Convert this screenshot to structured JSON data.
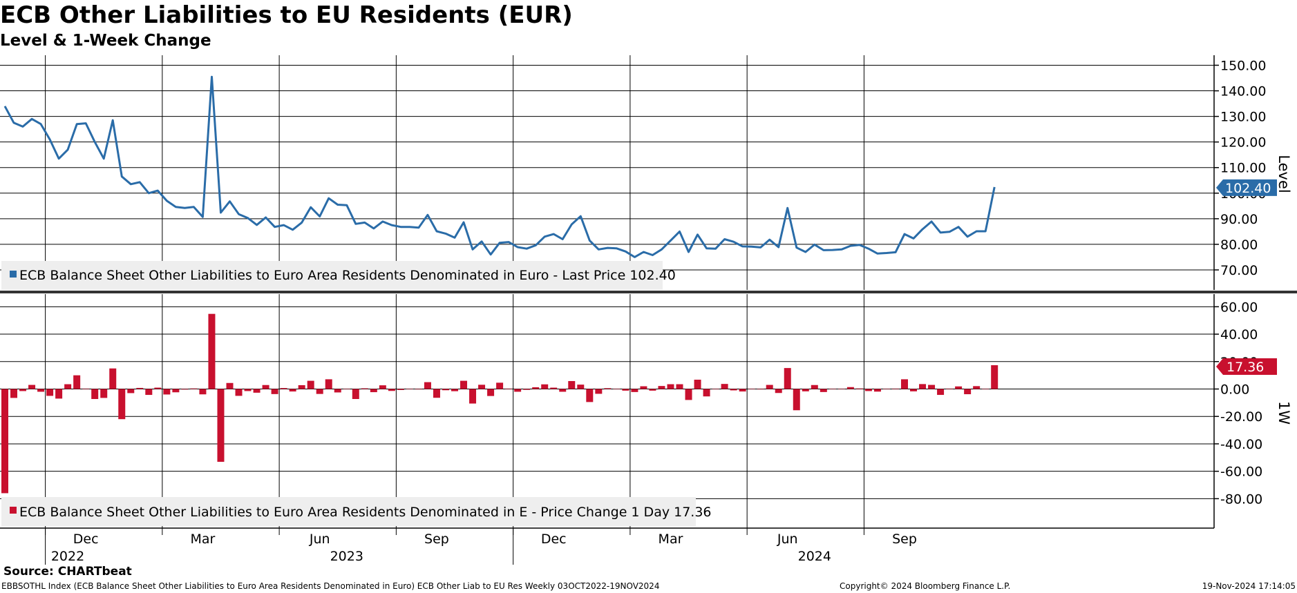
{
  "header": {
    "title": "ECB Other Liabilities to EU Residents (EUR)",
    "subtitle": "Level & 1-Week Change"
  },
  "footer": {
    "source": "Source: CHARTbeat",
    "left": "EBBSOTHL Index (ECB Balance Sheet Other Liabilities to Euro Area Residents Denominated in Euro) ECB Other Liab to EU Res  Weekly 03OCT2022-19NOV2024",
    "middle": "Copyright© 2024 Bloomberg Finance L.P.",
    "right": "19-Nov-2024 17:14:05"
  },
  "colors": {
    "level_line": "#2a6ca8",
    "change_bar": "#c8102e",
    "grid": "#000000",
    "legend_bg": "#eeeeee"
  },
  "chart_data": [
    {
      "type": "line",
      "ylabel": "Level",
      "ylim": [
        63,
        153
      ],
      "yticks": [
        "150.00",
        "140.00",
        "130.00",
        "120.00",
        "110.00",
        "100.00",
        "90.00",
        "80.00",
        "70.00"
      ],
      "ytick_values": [
        150,
        140,
        130,
        120,
        110,
        100,
        90,
        80,
        70
      ],
      "last_value_label": "102.40",
      "legend": "ECB Balance Sheet Other Liabilities to Euro Area Residents Denominated in Euro - Last Price 102.40",
      "series": [
        {
          "name": "ECB Balance Sheet Other Liabilities to Euro Area Residents Denominated in Euro",
          "values": [
            134,
            127.5,
            126,
            129,
            127,
            121,
            113.5,
            117,
            127,
            127.3,
            120,
            113.5,
            128.5,
            106.5,
            103.5,
            104.3,
            100,
            101,
            97,
            94.6,
            94.2,
            94.6,
            90.7,
            145.5,
            92.4,
            96.8,
            91.8,
            90.3,
            87.6,
            90.5,
            86.8,
            87.5,
            85.7,
            88.5,
            94.5,
            90.9,
            98,
            95.5,
            95.3,
            88,
            88.5,
            86.2,
            88.9,
            87.5,
            86.8,
            86.8,
            86.5,
            91.5,
            85.1,
            84.2,
            82.6,
            88.6,
            78,
            81.1,
            76,
            80.6,
            80.9,
            78.9,
            78.3,
            79.6,
            83,
            84,
            82,
            87.8,
            91,
            81.5,
            78,
            78.6,
            78.4,
            77.2,
            75,
            77,
            75.8,
            78,
            81.5,
            85,
            77,
            83.8,
            78.4,
            78.3,
            82,
            81,
            79.2,
            79.1,
            78.8,
            81.8,
            78.9,
            94.2,
            78.7,
            77,
            79.9,
            77.7,
            77.8,
            78,
            79.4,
            79.8,
            78.3,
            76.4,
            76.6,
            76.9,
            84,
            82.3,
            85.9,
            88.9,
            84.6,
            84.9,
            86.8,
            83,
            85.1,
            85.1,
            102.4
          ]
        }
      ]
    },
    {
      "type": "bar",
      "ylabel": "1W",
      "ylim": [
        -100,
        66
      ],
      "yticks": [
        "60.00",
        "40.00",
        "20.00",
        "0.00",
        "-20.00",
        "-40.00",
        "-60.00",
        "-80.00"
      ],
      "ytick_values": [
        60,
        40,
        20,
        0,
        -20,
        -40,
        -60,
        -80
      ],
      "last_value_label": "17.36",
      "legend": "ECB Balance Sheet Other Liabilities to Euro Area Residents Denominated in E - Price Change 1 Day 17.36",
      "series": [
        {
          "name": "ECB Balance Sheet Other Liabilities to Euro Area Residents Denominated in E",
          "values": [
            -76,
            -6.5,
            -1.5,
            3,
            -2,
            -5,
            -7,
            3.5,
            10,
            0.3,
            -7.3,
            -6.5,
            15,
            -22,
            -3,
            0.8,
            -4.3,
            1,
            -4,
            -2.4,
            -0.4,
            0.4,
            -3.9,
            54.8,
            -53.1,
            4.4,
            -5,
            -1.5,
            -2.7,
            2.9,
            -3.7,
            0.7,
            -1.8,
            2.8,
            6,
            -3.6,
            7.1,
            -2.5,
            -0.2,
            -7.3,
            0.5,
            -2.3,
            2.7,
            -1.4,
            -0.7,
            0,
            -0.3,
            5,
            -6.4,
            -0.9,
            -1.6,
            6,
            -10.6,
            3.1,
            -5.1,
            4.6,
            0.3,
            -2,
            -0.6,
            1.3,
            3.4,
            1,
            -2,
            5.8,
            3.2,
            -9.5,
            -3.5,
            0.6,
            -0.2,
            -1.2,
            -2.2,
            2,
            -1.2,
            2.2,
            3.5,
            3.5,
            -8,
            6.8,
            -5.4,
            -0.1,
            3.7,
            -1,
            -1.8,
            -0.1,
            -0.3,
            3,
            -2.9,
            15.3,
            -15.5,
            -1.7,
            2.9,
            -2.2,
            0.1,
            0.2,
            1.4,
            0.4,
            -1.5,
            -1.9,
            0.2,
            0.3,
            7.1,
            -1.7,
            3.6,
            3,
            -4.3,
            0.3,
            1.9,
            -3.8,
            2.1,
            0,
            17.36
          ]
        }
      ]
    }
  ],
  "x_axis": {
    "month_labels": [
      "Dec",
      "Mar",
      "Jun",
      "Sep",
      "Dec",
      "Mar",
      "Jun",
      "Sep"
    ],
    "month_label_weeks": [
      9,
      22,
      35,
      48,
      61,
      74,
      87,
      100
    ],
    "year_labels": [
      "2022",
      "2023",
      "2024"
    ],
    "year_label_weeks": [
      -5,
      38,
      90
    ],
    "gridline_weeks": [
      4.5,
      17.5,
      30.5,
      43.5,
      56.5,
      69.5,
      82.5,
      95.5
    ],
    "year_separator_weeks": [
      4.5,
      56.5
    ]
  }
}
